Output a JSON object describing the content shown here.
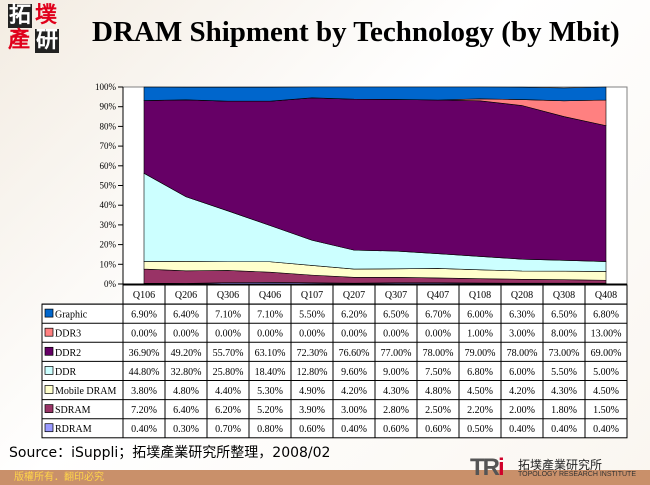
{
  "header": {
    "logo_text": "拓墣產研",
    "title": "DRAM Shipment by Technology (by Mbit)"
  },
  "chart_data": {
    "type": "area",
    "stacked": true,
    "title": "DRAM Shipment by Technology (by Mbit)",
    "categories": [
      "Q106",
      "Q206",
      "Q306",
      "Q406",
      "Q107",
      "Q207",
      "Q307",
      "Q407",
      "Q108",
      "Q208",
      "Q308",
      "Q408"
    ],
    "ylim": [
      0,
      100
    ],
    "yticks": [
      "0%",
      "10%",
      "20%",
      "30%",
      "40%",
      "50%",
      "60%",
      "70%",
      "80%",
      "90%",
      "100%"
    ],
    "legend": "data-table",
    "series": [
      {
        "name": "Graphic",
        "color": "#0066cc",
        "values": [
          6.9,
          6.4,
          7.1,
          7.1,
          5.5,
          6.2,
          6.5,
          6.7,
          6.0,
          6.3,
          6.5,
          6.8
        ],
        "labels": [
          "6.90%",
          "6.40%",
          "7.10%",
          "7.10%",
          "5.50%",
          "6.20%",
          "6.50%",
          "6.70%",
          "6.00%",
          "6.30%",
          "6.50%",
          "6.80%"
        ]
      },
      {
        "name": "DDR3",
        "color": "#ff8080",
        "values": [
          0,
          0,
          0,
          0,
          0,
          0,
          0,
          0,
          1.0,
          3.0,
          8.0,
          13.0
        ],
        "labels": [
          "0.00%",
          "0.00%",
          "0.00%",
          "0.00%",
          "0.00%",
          "0.00%",
          "0.00%",
          "0.00%",
          "1.00%",
          "3.00%",
          "8.00%",
          "13.00%"
        ]
      },
      {
        "name": "DDR2",
        "color": "#660066",
        "values": [
          36.9,
          49.2,
          55.7,
          63.1,
          72.3,
          76.6,
          77.0,
          78.0,
          79.0,
          78.0,
          73.0,
          69.0
        ],
        "labels": [
          "36.90%",
          "49.20%",
          "55.70%",
          "63.10%",
          "72.30%",
          "76.60%",
          "77.00%",
          "78.00%",
          "79.00%",
          "78.00%",
          "73.00%",
          "69.00%"
        ]
      },
      {
        "name": "DDR",
        "color": "#ccffff",
        "values": [
          44.8,
          32.8,
          25.8,
          18.4,
          12.8,
          9.6,
          9.0,
          7.5,
          6.8,
          6.0,
          5.5,
          5.0
        ],
        "labels": [
          "44.80%",
          "32.80%",
          "25.80%",
          "18.40%",
          "12.80%",
          "9.60%",
          "9.00%",
          "7.50%",
          "6.80%",
          "6.00%",
          "5.50%",
          "5.00%"
        ]
      },
      {
        "name": "Mobile DRAM",
        "color": "#ffffcc",
        "values": [
          3.8,
          4.8,
          4.4,
          5.3,
          4.9,
          4.2,
          4.3,
          4.8,
          4.5,
          4.2,
          4.3,
          4.5
        ],
        "labels": [
          "3.80%",
          "4.80%",
          "4.40%",
          "5.30%",
          "4.90%",
          "4.20%",
          "4.30%",
          "4.80%",
          "4.50%",
          "4.20%",
          "4.30%",
          "4.50%"
        ]
      },
      {
        "name": "SDRAM",
        "color": "#993366",
        "values": [
          7.2,
          6.4,
          6.2,
          5.2,
          3.9,
          3.0,
          2.8,
          2.5,
          2.2,
          2.0,
          1.8,
          1.5
        ],
        "labels": [
          "7.20%",
          "6.40%",
          "6.20%",
          "5.20%",
          "3.90%",
          "3.00%",
          "2.80%",
          "2.50%",
          "2.20%",
          "2.00%",
          "1.80%",
          "1.50%"
        ]
      },
      {
        "name": "RDRAM",
        "color": "#9999ff",
        "values": [
          0.4,
          0.3,
          0.7,
          0.8,
          0.6,
          0.4,
          0.6,
          0.6,
          0.5,
          0.4,
          0.4,
          0.4
        ],
        "labels": [
          "0.40%",
          "0.30%",
          "0.70%",
          "0.80%",
          "0.60%",
          "0.40%",
          "0.60%",
          "0.60%",
          "0.50%",
          "0.40%",
          "0.40%",
          "0.40%"
        ]
      }
    ]
  },
  "source": "Source：iSuppli；拓墣產業研究所整理，2008/02",
  "footer": {
    "copyright": "版權所有．翻印必究",
    "brand_mark": "TRi",
    "brand_cn": "拓墣產業研究所",
    "brand_en": "TOPOLOGY RESEARCH INSTITUTE"
  }
}
